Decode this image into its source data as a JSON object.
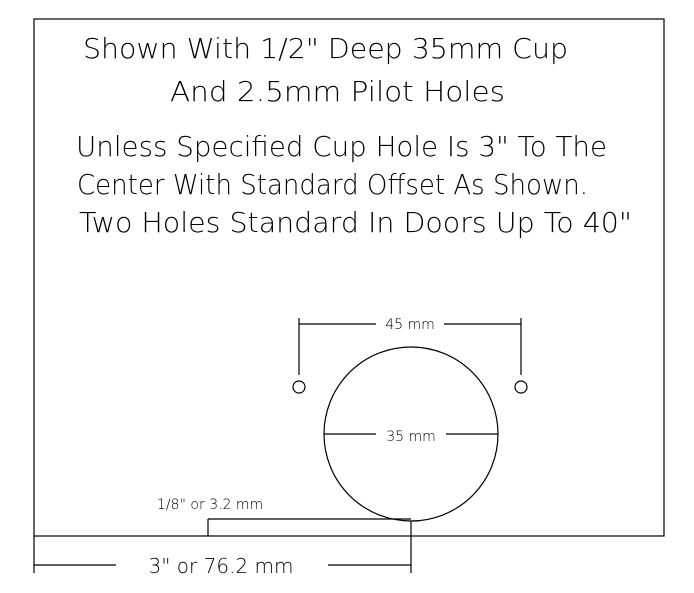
{
  "heading": {
    "line1": "Shown With 1/2\" Deep 35mm Cup",
    "line2": "And 2.5mm Pilot Holes"
  },
  "notes": {
    "line1": "Unless Specified Cup Hole Is 3\" To The",
    "line2": "Center With Standard Offset As Shown.",
    "line3": "Two Holes Standard In Doors Up To 40\""
  },
  "dimensions": {
    "pilot_spacing": "45 mm",
    "cup_diameter": "35 mm",
    "edge_offset": "1/8\" or  3.2 mm",
    "center_distance": "3\"  or  76.2  mm"
  }
}
